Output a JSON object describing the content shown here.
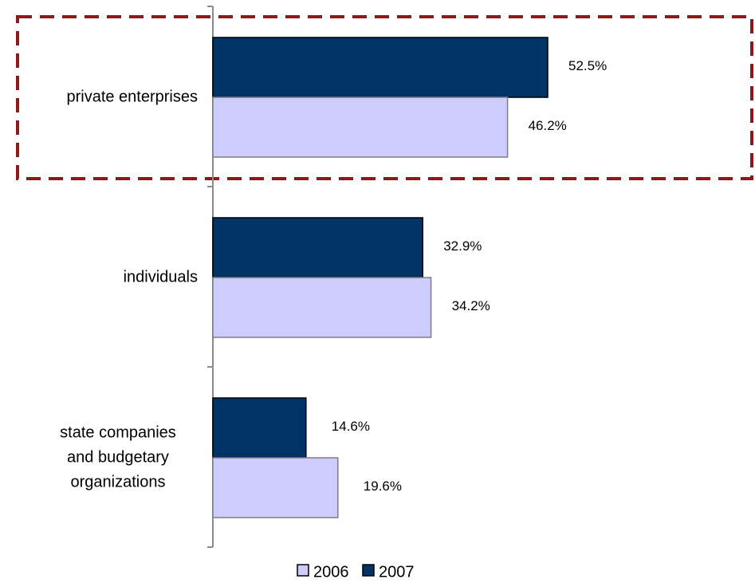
{
  "chart_data": {
    "type": "bar",
    "orientation": "horizontal",
    "categories": [
      [
        "private enterprises"
      ],
      [
        "individuals"
      ],
      [
        "state companies",
        "and budgetary",
        "organizations"
      ]
    ],
    "series": [
      {
        "name": "2007",
        "color": "#003366",
        "values": [
          52.5,
          32.9,
          14.6
        ],
        "labels": [
          "52.5%",
          "32.9%",
          "14.6%"
        ]
      },
      {
        "name": "2006",
        "color": "#ccccff",
        "values": [
          46.2,
          34.2,
          19.6
        ],
        "labels": [
          "46.2%",
          "34.2%",
          "19.6%"
        ]
      }
    ],
    "legend_order": [
      "2006",
      "2007"
    ],
    "xlim": [
      0,
      65
    ],
    "highlight": {
      "category_index": 0,
      "color": "#8b1a1a",
      "style": "dashed"
    },
    "grid": false,
    "legend_position": "bottom"
  }
}
